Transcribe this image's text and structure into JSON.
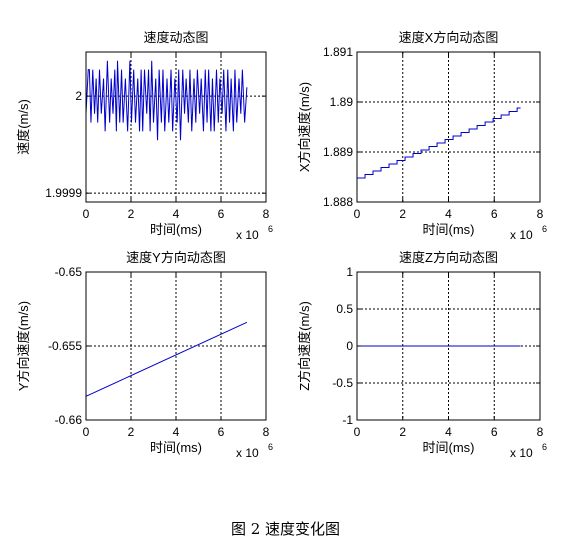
{
  "caption": "图 2  速度变化图",
  "colors": {
    "line": "#0000cc",
    "grid": "#000000",
    "axes": "#000000"
  },
  "chart_data": [
    {
      "type": "line",
      "title": "速度动态图",
      "xlabel": "时间(ms)",
      "ylabel": "速度(m/s)",
      "x_multiplier": "x 10",
      "x_exponent": "6",
      "xlim": [
        0,
        8
      ],
      "ylim": [
        1.99988,
        2.00005
      ],
      "xticks": [
        0,
        2,
        4,
        6,
        8
      ],
      "xtick_labels": [
        "0",
        "2",
        "4",
        "6",
        "8"
      ],
      "yticks": [
        1.99989,
        2.0
      ],
      "ytick_labels": [
        "1.9999",
        "2"
      ],
      "grid": true,
      "series": [
        {
          "x": [
            0,
            0.1,
            0.15,
            0.22,
            0.3,
            0.38,
            0.45,
            0.52,
            0.6,
            0.68,
            0.78,
            0.85,
            0.95,
            1.05,
            1.12,
            1.2,
            1.28,
            1.35,
            1.4,
            1.5,
            1.58,
            1.65,
            1.75,
            1.85,
            1.95,
            2.02,
            2.12,
            2.2,
            2.3,
            2.38,
            2.45,
            2.52,
            2.6,
            2.7,
            2.78,
            2.85,
            2.92,
            3.0,
            3.1,
            3.18,
            3.25,
            3.35,
            3.42,
            3.5,
            3.6,
            3.68,
            3.78,
            3.85,
            3.95,
            4.05,
            4.12,
            4.2,
            4.3,
            4.38,
            4.45,
            4.55,
            4.62,
            4.7,
            4.8,
            4.88,
            4.95,
            5.05,
            5.12,
            5.22,
            5.3,
            5.38,
            5.45,
            5.55,
            5.62,
            5.7,
            5.8,
            5.88,
            5.95,
            6.05,
            6.12,
            6.22,
            6.3,
            6.38,
            6.45,
            6.55,
            6.62,
            6.7,
            6.8,
            6.88,
            6.95,
            7.05,
            7.15
          ],
          "y": [
            1.99998,
            2.00003,
            2.00003,
            1.99997,
            2.00003,
            1.99998,
            2.00002,
            1.99997,
            2.00003,
            1.99998,
            2.00002,
            1.99996,
            2.00004,
            1.99997,
            2.00002,
            1.99998,
            2.00003,
            1.99996,
            2.00004,
            1.99997,
            2.00003,
            1.99997,
            2.00002,
            1.99996,
            2.00004,
            1.99997,
            2.00003,
            1.99997,
            2.00002,
            1.99996,
            2.00003,
            1.99996,
            2.00003,
            1.99998,
            2.00003,
            1.99996,
            2.00004,
            1.99997,
            2.00002,
            1.99995,
            2.00003,
            1.99997,
            2.00003,
            1.99996,
            2.00002,
            1.99997,
            2.00003,
            1.99996,
            2.00002,
            1.99997,
            2.00003,
            1.99995,
            2.00003,
            1.99998,
            2.00002,
            1.99997,
            2.00003,
            1.99996,
            2.00002,
            1.99997,
            2.00003,
            1.99998,
            2.00002,
            1.99996,
            2.00003,
            1.99997,
            2.00003,
            1.99996,
            2.00002,
            1.99996,
            2.00003,
            1.99997,
            2.00002,
            1.99998,
            2.00003,
            1.99996,
            2.00003,
            1.99997,
            2.00002,
            1.99996,
            2.00003,
            1.99997,
            2.00002,
            1.99998,
            2.00003,
            1.99997,
            2.00001
          ]
        }
      ]
    },
    {
      "type": "line",
      "title": "速度X方向动态图",
      "xlabel": "时间(ms)",
      "ylabel": "X方向速度(m/s)",
      "x_multiplier": "x 10",
      "x_exponent": "6",
      "xlim": [
        0,
        8
      ],
      "ylim": [
        1.888,
        1.891
      ],
      "xticks": [
        0,
        2,
        4,
        6,
        8
      ],
      "xtick_labels": [
        "0",
        "2",
        "4",
        "6",
        "8"
      ],
      "yticks": [
        1.888,
        1.889,
        1.89,
        1.891
      ],
      "ytick_labels": [
        "1.888",
        "1.889",
        "1.89",
        "1.891"
      ],
      "grid": true,
      "series": [
        {
          "x": [
            0,
            0.35,
            0.35,
            0.7,
            0.7,
            1.05,
            1.05,
            1.4,
            1.4,
            1.75,
            1.75,
            2.1,
            2.1,
            2.45,
            2.45,
            2.8,
            2.8,
            3.15,
            3.15,
            3.5,
            3.5,
            3.85,
            3.85,
            4.2,
            4.2,
            4.55,
            4.55,
            4.9,
            4.9,
            5.25,
            5.25,
            5.6,
            5.6,
            5.95,
            5.95,
            6.3,
            6.3,
            6.65,
            6.65,
            7.0,
            7.0,
            7.15
          ],
          "y": [
            1.88848,
            1.88848,
            1.88855,
            1.88855,
            1.88862,
            1.88862,
            1.88869,
            1.88869,
            1.88876,
            1.88876,
            1.88883,
            1.88883,
            1.8889,
            1.8889,
            1.88897,
            1.88897,
            1.88904,
            1.88904,
            1.88911,
            1.88911,
            1.88918,
            1.88918,
            1.88925,
            1.88925,
            1.88932,
            1.88932,
            1.88939,
            1.88939,
            1.88946,
            1.88946,
            1.88953,
            1.88953,
            1.8896,
            1.8896,
            1.88967,
            1.88967,
            1.88974,
            1.88974,
            1.88981,
            1.88981,
            1.88988,
            1.88988
          ]
        }
      ]
    },
    {
      "type": "line",
      "title": "速度Y方向动态图",
      "xlabel": "时间(ms)",
      "ylabel": "Y方向速度(m/s)",
      "x_multiplier": "x 10",
      "x_exponent": "6",
      "xlim": [
        0,
        8
      ],
      "ylim": [
        -0.66,
        -0.65
      ],
      "xticks": [
        0,
        2,
        4,
        6,
        8
      ],
      "xtick_labels": [
        "0",
        "2",
        "4",
        "6",
        "8"
      ],
      "yticks": [
        -0.66,
        -0.655,
        -0.65
      ],
      "ytick_labels": [
        "-0.66",
        "-0.655",
        "-0.65"
      ],
      "grid": true,
      "series": [
        {
          "x": [
            0,
            7.15
          ],
          "y": [
            -0.6584,
            -0.6534
          ]
        }
      ]
    },
    {
      "type": "line",
      "title": "速度Z方向动态图",
      "xlabel": "时间(ms)",
      "ylabel": "Z方向速度(m/s)",
      "x_multiplier": "x 10",
      "x_exponent": "6",
      "xlim": [
        0,
        8
      ],
      "ylim": [
        -1,
        1
      ],
      "xticks": [
        0,
        2,
        4,
        6,
        8
      ],
      "xtick_labels": [
        "0",
        "2",
        "4",
        "6",
        "8"
      ],
      "yticks": [
        -1,
        -0.5,
        0,
        0.5,
        1
      ],
      "ytick_labels": [
        "-1",
        "-0.5",
        "0",
        "0.5",
        "1"
      ],
      "grid": true,
      "series": [
        {
          "x": [
            0,
            7.15
          ],
          "y": [
            0,
            0
          ]
        }
      ]
    }
  ]
}
